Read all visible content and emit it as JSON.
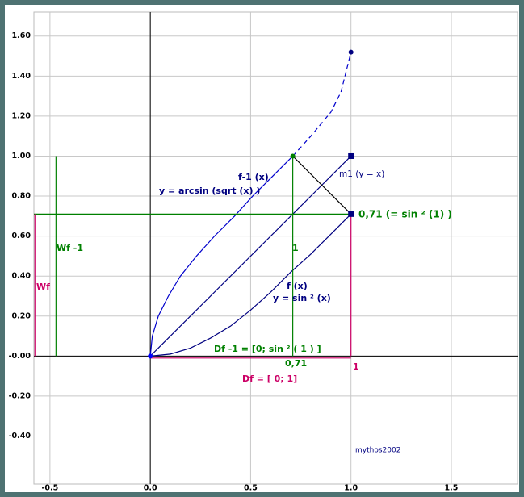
{
  "chart_data": {
    "type": "function-plot",
    "xlim": [
      -0.58,
      1.83
    ],
    "ylim": [
      -0.64,
      1.72
    ],
    "xticks": [
      -0.5,
      {
        "value": 0,
        "label": "0.0"
      },
      0.5,
      {
        "value": 1,
        "label": "1.0"
      },
      1.5
    ],
    "yticks": [
      {
        "value": 1.6,
        "label": "1.60"
      },
      {
        "value": 1.4,
        "label": "1.40"
      },
      {
        "value": 1.2,
        "label": "1.20"
      },
      {
        "value": 1,
        "label": "1.00"
      },
      {
        "value": 0.8,
        "label": "0.80"
      },
      {
        "value": 0.6,
        "label": "0.60"
      },
      {
        "value": 0.4,
        "label": "0.40"
      },
      {
        "value": 0.2,
        "label": "0.20"
      },
      {
        "value": 0,
        "label": "-0.00"
      },
      {
        "value": -0.2,
        "label": "-0.20"
      },
      {
        "value": -0.4,
        "label": "-0.40"
      }
    ],
    "grid": true,
    "series": [
      {
        "color": "#000080",
        "style": "solid",
        "x": [
          0,
          0.1,
          0.2,
          0.3,
          0.4,
          0.5,
          0.6,
          0.7,
          0.8,
          0.9,
          1
        ],
        "values": [
          0,
          0.01,
          0.04,
          0.09,
          0.15,
          0.23,
          0.32,
          0.42,
          0.51,
          0.61,
          0.71
        ]
      },
      {
        "color": "#0000cc",
        "style": "solid",
        "x": [
          0,
          0.01,
          0.04,
          0.09,
          0.15,
          0.23,
          0.32,
          0.42,
          0.51,
          0.61,
          0.71
        ],
        "values": [
          0,
          0.1,
          0.2,
          0.3,
          0.4,
          0.5,
          0.6,
          0.7,
          0.8,
          0.9,
          1
        ]
      },
      {
        "color": "#0000cc",
        "style": "dashed",
        "x": [
          0.71,
          0.8,
          0.9,
          0.95,
          1
        ],
        "values": [
          1,
          1.1,
          1.22,
          1.32,
          1.52
        ]
      },
      {
        "color": "#000080",
        "style": "solid",
        "x": [
          0,
          1
        ],
        "values": [
          0,
          1
        ]
      },
      {
        "color": "#000000",
        "style": "solid",
        "x": [
          0.71,
          1
        ],
        "values": [
          1,
          0.71
        ]
      },
      {
        "color": "#008000",
        "style": "solid",
        "x": [
          -0.58,
          1
        ],
        "values": [
          0.71,
          0.71
        ]
      },
      {
        "color": "#008000",
        "style": "solid",
        "x": [
          0.71,
          0.71
        ],
        "values": [
          0,
          1
        ]
      },
      {
        "color": "#008000",
        "style": "solid",
        "x": [
          -0.47,
          -0.47
        ],
        "values": [
          0,
          1
        ]
      },
      {
        "color": "#cc0066",
        "style": "solid",
        "x": [
          1,
          1
        ],
        "values": [
          0,
          0.71
        ]
      },
      {
        "color": "#cc0066",
        "style": "solid",
        "x": [
          0,
          1
        ],
        "values": [
          -0.01,
          -0.01
        ]
      },
      {
        "color": "#cc0066",
        "style": "solid",
        "x": [
          -0.575,
          -0.575
        ],
        "values": [
          0,
          0.71
        ]
      }
    ],
    "points": [
      {
        "x": 0,
        "y": 0,
        "color": "#0000ff",
        "marker": "circle"
      },
      {
        "x": 0.71,
        "y": 1,
        "color": "#008000",
        "marker": "circle"
      },
      {
        "x": 1,
        "y": 1,
        "color": "#000080",
        "marker": "square"
      },
      {
        "x": 1,
        "y": 0.71,
        "color": "#000080",
        "marker": "square"
      },
      {
        "x": 1,
        "y": 1.52,
        "color": "#000080",
        "marker": "circle"
      }
    ],
    "annotations": [
      {
        "text": "f-1 (x)",
        "color": "#000080"
      },
      {
        "text": "y = arcsin (sqrt (x) )",
        "color": "#000080"
      },
      {
        "text": "m1 (y = x)",
        "color": "#000080"
      },
      {
        "text": "0,71 (= sin ² (1) )",
        "color": "#008000"
      },
      {
        "text": "Wf -1",
        "color": "#008000"
      },
      {
        "text": "1",
        "color": "#008000"
      },
      {
        "text": "Wf",
        "color": "#cc0066"
      },
      {
        "text": "f (x)",
        "color": "#000080"
      },
      {
        "text": "y = sin ² (x)",
        "color": "#000080"
      },
      {
        "text": "Df -1 = [0; sin ² ( 1 ) ]",
        "color": "#008000"
      },
      {
        "text": "0,71",
        "color": "#008000"
      },
      {
        "text": "1",
        "color": "#cc0066"
      },
      {
        "text": "Df = [ 0; 1]",
        "color": "#cc0066"
      },
      {
        "text": "mythos2002",
        "color": "#000080"
      }
    ]
  }
}
